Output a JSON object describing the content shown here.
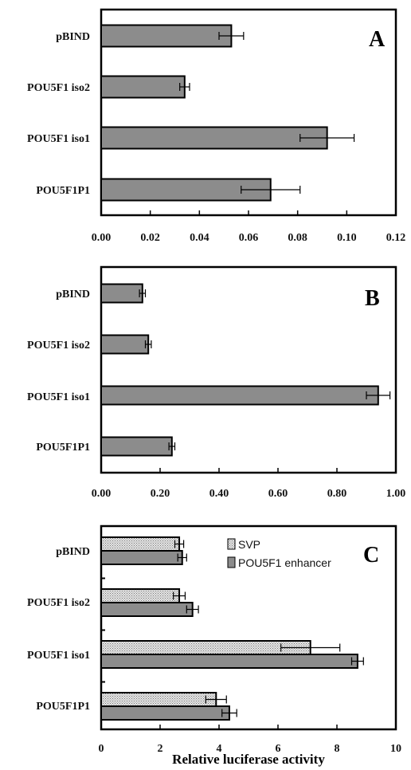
{
  "xlabel": "Relative luciferase activity",
  "colors": {
    "bar": "#8c8c8c",
    "bar_dotted": "#d9d9d9",
    "frame": "#000000"
  },
  "chart_data": [
    {
      "type": "bar",
      "orientation": "horizontal",
      "panel_label": "A",
      "categories": [
        "pBIND",
        "POU5F1 iso2",
        "POU5F1 iso1",
        "POU5F1P1"
      ],
      "series": [
        {
          "values": [
            0.053,
            0.034,
            0.092,
            0.069
          ],
          "errors": [
            0.005,
            0.002,
            0.011,
            0.012
          ]
        }
      ],
      "xlim": [
        0,
        0.12
      ],
      "xticks": [
        "0.00",
        "0.02",
        "0.04",
        "0.06",
        "0.08",
        "0.10",
        "0.12"
      ],
      "grid": false
    },
    {
      "type": "bar",
      "orientation": "horizontal",
      "panel_label": "B",
      "categories": [
        "pBIND",
        "POU5F1 iso2",
        "POU5F1 iso1",
        "POU5F1P1"
      ],
      "series": [
        {
          "values": [
            0.14,
            0.16,
            0.94,
            0.24
          ],
          "errors": [
            0.01,
            0.01,
            0.04,
            0.01
          ]
        }
      ],
      "xlim": [
        0,
        1.0
      ],
      "xticks": [
        "0.00",
        "0.20",
        "0.40",
        "0.60",
        "0.80",
        "1.00"
      ],
      "grid": false
    },
    {
      "type": "bar",
      "orientation": "horizontal",
      "panel_label": "C",
      "categories": [
        "pBIND",
        "POU5F1 iso2",
        "POU5F1 iso1",
        "POU5F1P1"
      ],
      "series": [
        {
          "name": "SVP",
          "values": [
            2.65,
            2.65,
            7.1,
            3.9
          ],
          "errors": [
            0.15,
            0.2,
            1.0,
            0.35
          ]
        },
        {
          "name": "POU5F1 enhancer",
          "values": [
            2.75,
            3.1,
            8.7,
            4.35
          ],
          "errors": [
            0.15,
            0.2,
            0.2,
            0.25
          ]
        }
      ],
      "xlim": [
        0,
        10
      ],
      "xticks": [
        "0",
        "2",
        "4",
        "6",
        "8",
        "10"
      ],
      "legend": "top-right",
      "grid": false
    }
  ]
}
